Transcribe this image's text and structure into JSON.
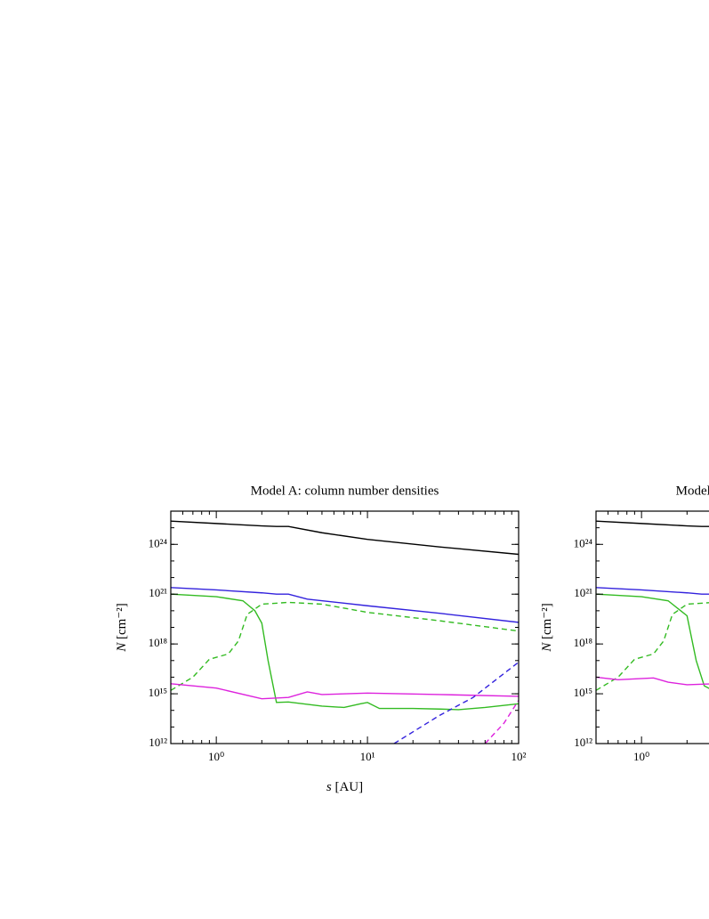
{
  "chart_data": [
    {
      "type": "line",
      "title": "Model A: column number densities",
      "xlabel_var": "s",
      "xlabel_unit": "[AU]",
      "ylabel_var": "N",
      "ylabel_unit": "[cm⁻²]",
      "xscale": "log",
      "yscale": "log",
      "xlim": [
        0.5,
        100
      ],
      "ylim": [
        1000000000000.0,
        1e+26
      ],
      "xticks": [
        {
          "value": 1,
          "label": "10⁰"
        },
        {
          "value": 10,
          "label": "10¹"
        },
        {
          "value": 100,
          "label": "10²"
        }
      ],
      "yticks": [
        {
          "value": 1000000000000.0,
          "label": "10¹²"
        },
        {
          "value": 1000000000000000.0,
          "label": "10¹⁵"
        },
        {
          "value": 1e+18,
          "label": "10¹⁸"
        },
        {
          "value": 1e+21,
          "label": "10²¹"
        },
        {
          "value": 1e+24,
          "label": "10²⁴"
        }
      ],
      "series": [
        {
          "color": "#000000",
          "linestyle": "solid",
          "x": [
            0.5,
            1,
            2,
            2.5,
            3,
            5,
            10,
            30,
            100
          ],
          "values": [
            2.5e+25,
            1.8e+25,
            1.3e+25,
            1.2e+25,
            1.2e+25,
            5e+24,
            2e+24,
            7e+23,
            2.5e+23
          ]
        },
        {
          "color": "#3322dd",
          "linestyle": "solid",
          "x": [
            0.5,
            1,
            2,
            2.5,
            3,
            4,
            10,
            30,
            100
          ],
          "values": [
            2.5e+21,
            1.8e+21,
            1.2e+21,
            1e+21,
            1e+21,
            5e+20,
            2e+20,
            7e+19,
            2e+19
          ]
        },
        {
          "color": "#33bb22",
          "linestyle": "solid",
          "x": [
            0.5,
            1,
            1.5,
            1.8,
            2,
            2.2,
            2.5,
            3,
            5,
            7,
            9,
            10,
            12,
            20,
            30,
            40,
            60,
            100
          ],
          "values": [
            1e+21,
            7e+20,
            4e+20,
            1e+20,
            1.8e+19,
            1e+17,
            300000000000000.0,
            320000000000000.0,
            180000000000000.0,
            150000000000000.0,
            250000000000000.0,
            300000000000000.0,
            130000000000000.0,
            130000000000000.0,
            120000000000000.0,
            110000000000000.0,
            150000000000000.0,
            250000000000000.0
          ]
        },
        {
          "color": "#33bb22",
          "linestyle": "dashed",
          "x": [
            0.5,
            0.7,
            0.9,
            1.2,
            1.4,
            1.6,
            2,
            3,
            5,
            10,
            30,
            100
          ],
          "values": [
            1600000000000000.0,
            1e+16,
            1.2e+17,
            2.5e+17,
            1.5e+18,
            6e+19,
            2.5e+20,
            3.2e+20,
            2.5e+20,
            8e+19,
            2.5e+19,
            6e+18
          ]
        },
        {
          "color": "#dd22dd",
          "linestyle": "solid",
          "x": [
            0.5,
            1,
            2,
            3,
            4,
            5,
            10,
            30,
            100
          ],
          "values": [
            4000000000000000.0,
            2200000000000000.0,
            500000000000000.0,
            600000000000000.0,
            1300000000000000.0,
            900000000000000.0,
            1100000000000000.0,
            900000000000000.0,
            700000000000000.0
          ]
        },
        {
          "color": "#3322dd",
          "linestyle": "dashed",
          "x": [
            15,
            30,
            50,
            100
          ],
          "values": [
            1000000000000.0,
            50000000000000.0,
            600000000000000.0,
            8e+16
          ]
        },
        {
          "color": "#dd22dd",
          "linestyle": "dashed",
          "x": [
            60,
            80,
            100
          ],
          "values": [
            1000000000000.0,
            17000000000000.0,
            400000000000000.0
          ]
        }
      ]
    },
    {
      "type": "line",
      "title": "Model B: column number densities",
      "ylabel_var": "N",
      "ylabel_unit": "[cm⁻²]",
      "xscale": "log",
      "yscale": "log",
      "xlim": [
        0.5,
        100
      ],
      "ylim": [
        1000000000000.0,
        1e+26
      ],
      "xticks": [
        {
          "value": 1,
          "label": "10⁰"
        }
      ],
      "yticks": [
        {
          "value": 1000000000000.0,
          "label": "10¹²"
        },
        {
          "value": 1000000000000000.0,
          "label": "10¹⁵"
        },
        {
          "value": 1e+18,
          "label": "10¹⁸"
        },
        {
          "value": 1e+21,
          "label": "10²¹"
        },
        {
          "value": 1e+24,
          "label": "10²⁴"
        }
      ],
      "series": [
        {
          "color": "#000000",
          "linestyle": "solid",
          "x": [
            0.5,
            1,
            2,
            2.5,
            3,
            5
          ],
          "values": [
            2.5e+25,
            1.8e+25,
            1.3e+25,
            1.2e+25,
            1.2e+25,
            5e+24
          ]
        },
        {
          "color": "#3322dd",
          "linestyle": "solid",
          "x": [
            0.5,
            1,
            2,
            2.5,
            3,
            5
          ],
          "values": [
            2.5e+21,
            1.8e+21,
            1.2e+21,
            1e+21,
            1e+21,
            5e+20
          ]
        },
        {
          "color": "#33bb22",
          "linestyle": "solid",
          "x": [
            0.5,
            1,
            1.5,
            2,
            2.3,
            2.6,
            3,
            5
          ],
          "values": [
            1e+21,
            7e+20,
            4e+20,
            5e+19,
            1e+17,
            3000000000000000.0,
            1500000000000000.0,
            1500000000000000.0
          ]
        },
        {
          "color": "#33bb22",
          "linestyle": "dashed",
          "x": [
            0.5,
            0.7,
            0.9,
            1.2,
            1.4,
            1.6,
            2,
            3,
            5
          ],
          "values": [
            1600000000000000.0,
            1e+16,
            1.2e+17,
            2.5e+17,
            1.5e+18,
            6e+19,
            2.5e+20,
            3.2e+20,
            2.5e+20
          ]
        },
        {
          "color": "#dd22dd",
          "linestyle": "solid",
          "x": [
            0.5,
            0.7,
            1.2,
            1.5,
            2,
            3,
            5
          ],
          "values": [
            1e+16,
            7000000000000000.0,
            9000000000000000.0,
            5000000000000000.0,
            3500000000000000.0,
            4000000000000000.0,
            4000000000000000.0
          ]
        }
      ]
    }
  ]
}
